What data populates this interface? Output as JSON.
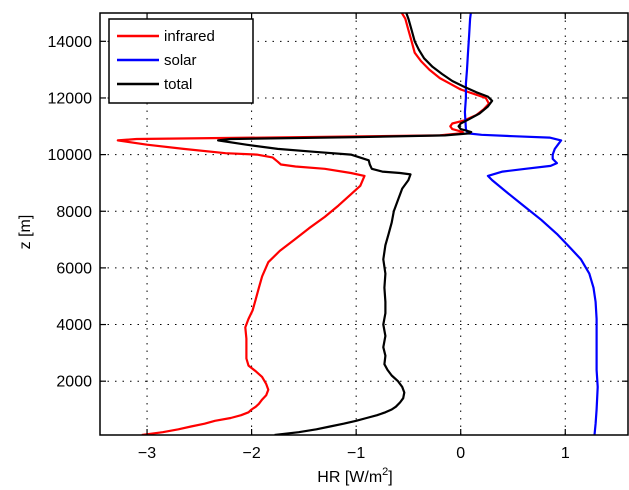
{
  "chart_data": {
    "type": "line",
    "title": "",
    "xlabel": "HR [W/m",
    "xlabel_sup": "2",
    "xlabel_tail": "]",
    "ylabel": "z [m]",
    "xlim": [
      -3.45,
      1.6
    ],
    "ylim": [
      100,
      15000
    ],
    "xticks": [
      -3,
      -2,
      -1,
      0,
      1
    ],
    "xtick_labels": [
      "−3",
      "−2",
      "−1",
      "0",
      "1"
    ],
    "yticks": [
      2000,
      4000,
      6000,
      8000,
      10000,
      12000,
      14000
    ],
    "ytick_labels": [
      "2000",
      "4000",
      "6000",
      "8000",
      "10000",
      "12000",
      "14000"
    ],
    "grid": true,
    "legend_position": "top-left",
    "series": [
      {
        "name": "infrared",
        "color": "#ff0000",
        "points": [
          [
            -3.05,
            100
          ],
          [
            -2.85,
            200
          ],
          [
            -2.7,
            300
          ],
          [
            -2.58,
            400
          ],
          [
            -2.45,
            500
          ],
          [
            -2.35,
            600
          ],
          [
            -2.2,
            700
          ],
          [
            -2.1,
            800
          ],
          [
            -2.03,
            900
          ],
          [
            -2.0,
            1000
          ],
          [
            -1.96,
            1100
          ],
          [
            -1.93,
            1200
          ],
          [
            -1.9,
            1350
          ],
          [
            -1.86,
            1500
          ],
          [
            -1.84,
            1700
          ],
          [
            -1.86,
            1900
          ],
          [
            -1.9,
            2150
          ],
          [
            -1.96,
            2350
          ],
          [
            -2.03,
            2550
          ],
          [
            -2.05,
            2800
          ],
          [
            -2.05,
            3100
          ],
          [
            -2.05,
            3500
          ],
          [
            -2.06,
            3900
          ],
          [
            -2.03,
            4200
          ],
          [
            -1.99,
            4500
          ],
          [
            -1.96,
            4900
          ],
          [
            -1.93,
            5300
          ],
          [
            -1.9,
            5700
          ],
          [
            -1.84,
            6200
          ],
          [
            -1.73,
            6600
          ],
          [
            -1.59,
            7000
          ],
          [
            -1.45,
            7400
          ],
          [
            -1.3,
            7800
          ],
          [
            -1.17,
            8200
          ],
          [
            -1.05,
            8600
          ],
          [
            -0.96,
            8900
          ],
          [
            -0.92,
            9250
          ],
          [
            -1.05,
            9350
          ],
          [
            -1.3,
            9500
          ],
          [
            -1.58,
            9580
          ],
          [
            -1.72,
            9650
          ],
          [
            -1.75,
            9750
          ],
          [
            -1.8,
            9900
          ],
          [
            -1.95,
            10000
          ],
          [
            -2.25,
            10050
          ],
          [
            -2.65,
            10200
          ],
          [
            -3.0,
            10350
          ],
          [
            -3.28,
            10500
          ],
          [
            -3.1,
            10550
          ],
          [
            -1.5,
            10620
          ],
          [
            -0.2,
            10680
          ],
          [
            0.0,
            10750
          ],
          [
            0.02,
            10800
          ],
          [
            -0.08,
            10900
          ],
          [
            -0.1,
            11000
          ],
          [
            -0.08,
            11100
          ],
          [
            0.03,
            11200
          ],
          [
            0.15,
            11400
          ],
          [
            0.22,
            11600
          ],
          [
            0.27,
            11800
          ],
          [
            0.24,
            12000
          ],
          [
            0.12,
            12150
          ],
          [
            0.0,
            12300
          ],
          [
            -0.1,
            12500
          ],
          [
            -0.2,
            12700
          ],
          [
            -0.3,
            13000
          ],
          [
            -0.38,
            13300
          ],
          [
            -0.44,
            13600
          ],
          [
            -0.47,
            14000
          ],
          [
            -0.5,
            14400
          ],
          [
            -0.53,
            14800
          ],
          [
            -0.58,
            15100
          ]
        ]
      },
      {
        "name": "solar",
        "color": "#0000ff",
        "points": [
          [
            1.28,
            100
          ],
          [
            1.29,
            500
          ],
          [
            1.3,
            1000
          ],
          [
            1.31,
            1800
          ],
          [
            1.3,
            2400
          ],
          [
            1.3,
            3000
          ],
          [
            1.3,
            3600
          ],
          [
            1.3,
            4200
          ],
          [
            1.29,
            4800
          ],
          [
            1.27,
            5300
          ],
          [
            1.23,
            5800
          ],
          [
            1.15,
            6300
          ],
          [
            1.05,
            6700
          ],
          [
            0.92,
            7200
          ],
          [
            0.77,
            7700
          ],
          [
            0.6,
            8200
          ],
          [
            0.43,
            8700
          ],
          [
            0.3,
            9100
          ],
          [
            0.26,
            9250
          ],
          [
            0.4,
            9400
          ],
          [
            0.62,
            9500
          ],
          [
            0.86,
            9600
          ],
          [
            0.92,
            9700
          ],
          [
            0.88,
            9850
          ],
          [
            0.88,
            10000
          ],
          [
            0.9,
            10200
          ],
          [
            0.93,
            10350
          ],
          [
            0.96,
            10500
          ],
          [
            0.85,
            10600
          ],
          [
            0.5,
            10650
          ],
          [
            0.2,
            10700
          ],
          [
            0.07,
            10750
          ],
          [
            0.05,
            10900
          ],
          [
            0.04,
            11500
          ],
          [
            0.05,
            12000
          ],
          [
            0.05,
            12500
          ],
          [
            0.06,
            13000
          ],
          [
            0.07,
            13600
          ],
          [
            0.08,
            14200
          ],
          [
            0.09,
            14800
          ],
          [
            0.1,
            15100
          ]
        ]
      },
      {
        "name": "total",
        "color": "#000000",
        "points": [
          [
            -1.78,
            100
          ],
          [
            -1.55,
            200
          ],
          [
            -1.38,
            300
          ],
          [
            -1.25,
            400
          ],
          [
            -1.12,
            500
          ],
          [
            -1.0,
            600
          ],
          [
            -0.9,
            700
          ],
          [
            -0.8,
            800
          ],
          [
            -0.72,
            900
          ],
          [
            -0.66,
            1000
          ],
          [
            -0.62,
            1100
          ],
          [
            -0.58,
            1250
          ],
          [
            -0.55,
            1400
          ],
          [
            -0.54,
            1600
          ],
          [
            -0.56,
            1800
          ],
          [
            -0.6,
            2000
          ],
          [
            -0.66,
            2200
          ],
          [
            -0.7,
            2400
          ],
          [
            -0.73,
            2600
          ],
          [
            -0.72,
            2900
          ],
          [
            -0.74,
            3200
          ],
          [
            -0.72,
            3600
          ],
          [
            -0.74,
            4000
          ],
          [
            -0.72,
            4400
          ],
          [
            -0.72,
            4800
          ],
          [
            -0.73,
            5300
          ],
          [
            -0.72,
            5800
          ],
          [
            -0.74,
            6300
          ],
          [
            -0.72,
            6800
          ],
          [
            -0.69,
            7200
          ],
          [
            -0.66,
            7600
          ],
          [
            -0.64,
            8000
          ],
          [
            -0.6,
            8400
          ],
          [
            -0.56,
            8800
          ],
          [
            -0.5,
            9100
          ],
          [
            -0.48,
            9300
          ],
          [
            -0.58,
            9350
          ],
          [
            -0.75,
            9400
          ],
          [
            -0.85,
            9500
          ],
          [
            -0.87,
            9650
          ],
          [
            -0.88,
            9800
          ],
          [
            -1.05,
            10000
          ],
          [
            -1.4,
            10100
          ],
          [
            -1.75,
            10200
          ],
          [
            -2.05,
            10350
          ],
          [
            -2.32,
            10500
          ],
          [
            -2.2,
            10550
          ],
          [
            -1.0,
            10620
          ],
          [
            -0.15,
            10680
          ],
          [
            0.08,
            10750
          ],
          [
            0.1,
            10800
          ],
          [
            0.0,
            10900
          ],
          [
            -0.02,
            11000
          ],
          [
            0.0,
            11100
          ],
          [
            0.08,
            11250
          ],
          [
            0.18,
            11450
          ],
          [
            0.26,
            11700
          ],
          [
            0.3,
            11900
          ],
          [
            0.26,
            12050
          ],
          [
            0.15,
            12200
          ],
          [
            0.03,
            12400
          ],
          [
            -0.08,
            12600
          ],
          [
            -0.18,
            12850
          ],
          [
            -0.27,
            13100
          ],
          [
            -0.35,
            13400
          ],
          [
            -0.4,
            13700
          ],
          [
            -0.44,
            14000
          ],
          [
            -0.47,
            14400
          ],
          [
            -0.5,
            14800
          ],
          [
            -0.53,
            15100
          ]
        ]
      }
    ]
  }
}
